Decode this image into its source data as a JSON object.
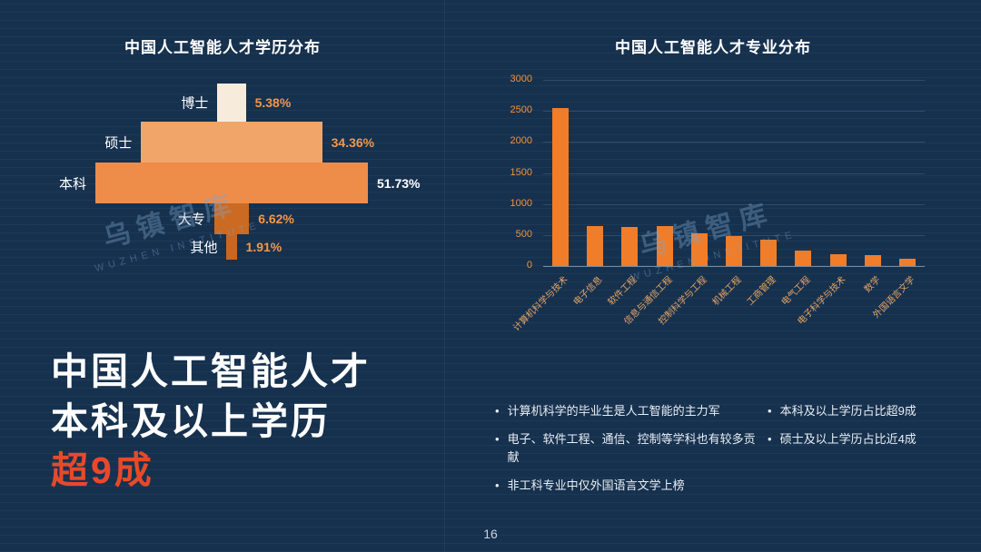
{
  "slide": {
    "page_number": "16"
  },
  "watermarks": [
    {
      "cn": "乌镇智库",
      "en": "WUZHEN INSTITUTE"
    },
    {
      "cn": "乌镇智库",
      "en": "WUZHEN INSTITUTE"
    }
  ],
  "headline": {
    "line1": "中国人工智能人才",
    "line2": "本科及以上学历",
    "line3": "超9成"
  },
  "bullets": {
    "left": [
      "计算机科学的毕业生是人工智能的主力军",
      "电子、软件工程、通信、控制等学科也有较多贡献",
      "非工科专业中仅外国语言文学上榜"
    ],
    "right": [
      "本科及以上学历占比超9成",
      "硕士及以上学历占比近4成"
    ]
  },
  "colors": {
    "background": "#16314e",
    "accent_orange": "#ef7d2a",
    "headline_accent": "#e8492b",
    "axis_text": "#ef9340"
  },
  "chart_data": [
    {
      "type": "bar",
      "variant": "funnel",
      "title": "中国人工智能人才学历分布",
      "categories": [
        "博士",
        "硕士",
        "本科",
        "大专",
        "其他"
      ],
      "values": [
        5.38,
        34.36,
        51.73,
        6.62,
        1.91
      ],
      "value_labels": [
        "5.38%",
        "34.36%",
        "51.73%",
        "6.62%",
        "1.91%"
      ],
      "bar_colors": [
        "#f7ecdc",
        "#f2a569",
        "#ee8c4a",
        "#cb6a22",
        "#c96621"
      ],
      "value_label_colors": [
        "#f29749",
        "#f29749",
        "#ffffff",
        "#f29749",
        "#f29749"
      ]
    },
    {
      "type": "bar",
      "title": "中国人工智能人才专业分布",
      "categories": [
        "计算机科学与技术",
        "电子信息",
        "软件工程",
        "信息与通信工程",
        "控制科学与工程",
        "机械工程",
        "工商管理",
        "电气工程",
        "电子科学与技术",
        "数学",
        "外国语言文学"
      ],
      "values": [
        2550,
        650,
        630,
        640,
        520,
        480,
        430,
        250,
        190,
        170,
        110
      ],
      "ylim": [
        0,
        3000
      ],
      "yticks": [
        0,
        500,
        1000,
        1500,
        2000,
        2500,
        3000
      ],
      "bar_color": "#ef7d2a",
      "grid": true,
      "legend_position": "none"
    }
  ]
}
